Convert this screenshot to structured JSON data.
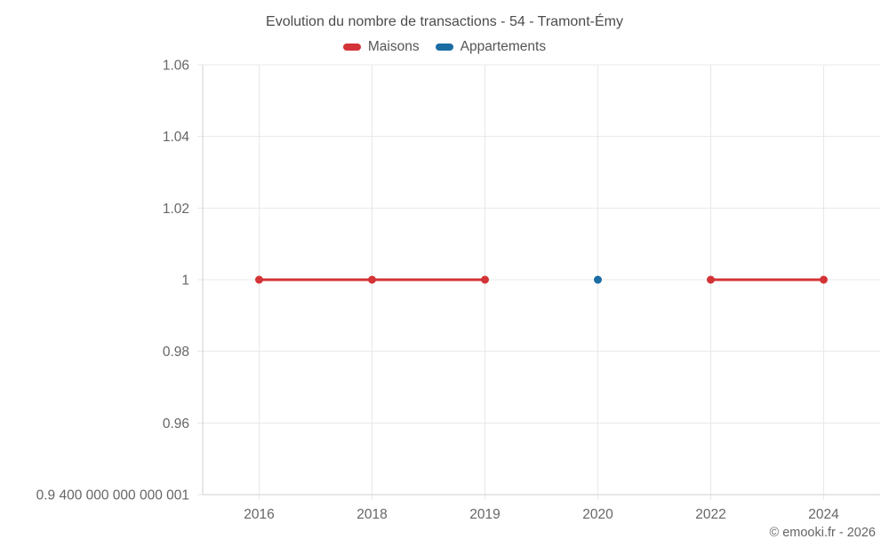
{
  "title": "Evolution du nombre de transactions - 54 - Tramont-Émy",
  "copyright": "© emooki.fr - 2026",
  "chart_data": {
    "type": "line",
    "title": "Evolution du nombre de transactions - 54 - Tramont-Émy",
    "categories": [
      "2016",
      "2018",
      "2019",
      "2020",
      "2022",
      "2024"
    ],
    "series": [
      {
        "name": "Maisons",
        "color": "#d43437",
        "values": [
          1,
          1,
          1,
          null,
          1,
          1
        ]
      },
      {
        "name": "Appartements",
        "color": "#1a6ca3",
        "values": [
          null,
          null,
          null,
          1,
          null,
          null
        ]
      }
    ],
    "ylim": [
      0.94,
      1.06
    ],
    "yticks": [
      {
        "value": 1.06,
        "label": "1.06"
      },
      {
        "value": 1.04,
        "label": "1.04"
      },
      {
        "value": 1.02,
        "label": "1.02"
      },
      {
        "value": 1,
        "label": "1"
      },
      {
        "value": 0.98,
        "label": "0.98"
      },
      {
        "value": 0.96,
        "label": "0.96"
      },
      {
        "value": 0.94,
        "label": "0.9 400 000 000 000 001"
      }
    ],
    "xlabel": "",
    "ylabel": "",
    "grid": true,
    "legend_position": "top",
    "colors": {
      "grid": "#e8e8e8",
      "axis": "#d2d2d2",
      "text": "#666666"
    }
  }
}
